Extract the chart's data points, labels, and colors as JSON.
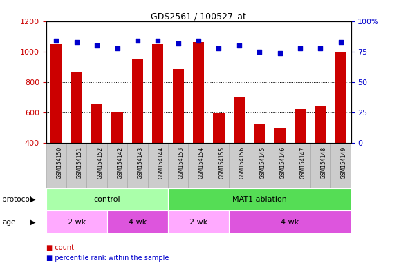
{
  "title": "GDS2561 / 100527_at",
  "samples": [
    "GSM154150",
    "GSM154151",
    "GSM154152",
    "GSM154142",
    "GSM154143",
    "GSM154144",
    "GSM154153",
    "GSM154154",
    "GSM154155",
    "GSM154156",
    "GSM154145",
    "GSM154146",
    "GSM154147",
    "GSM154148",
    "GSM154149"
  ],
  "bar_values": [
    1050,
    865,
    655,
    600,
    955,
    1048,
    885,
    1062,
    595,
    700,
    530,
    500,
    625,
    640,
    1000
  ],
  "dot_values": [
    84,
    83,
    80,
    78,
    84,
    84,
    82,
    84,
    78,
    80,
    75,
    74,
    78,
    78,
    83
  ],
  "bar_color": "#cc0000",
  "dot_color": "#0000cc",
  "ylim_left": [
    400,
    1200
  ],
  "ylim_right": [
    0,
    100
  ],
  "yticks_left": [
    400,
    600,
    800,
    1000,
    1200
  ],
  "yticks_right": [
    0,
    25,
    50,
    75,
    100
  ],
  "grid_lines": [
    600,
    800,
    1000
  ],
  "protocol_groups": [
    {
      "label": "control",
      "start": 0,
      "end": 6,
      "color": "#aaffaa"
    },
    {
      "label": "MAT1 ablation",
      "start": 6,
      "end": 15,
      "color": "#55dd55"
    }
  ],
  "age_groups": [
    {
      "label": "2 wk",
      "start": 0,
      "end": 3,
      "color": "#ffaaff"
    },
    {
      "label": "4 wk",
      "start": 3,
      "end": 6,
      "color": "#dd55dd"
    },
    {
      "label": "2 wk",
      "start": 6,
      "end": 9,
      "color": "#ffaaff"
    },
    {
      "label": "4 wk",
      "start": 9,
      "end": 15,
      "color": "#dd55dd"
    }
  ],
  "legend_items": [
    {
      "label": "count",
      "color": "#cc0000"
    },
    {
      "label": "percentile rank within the sample",
      "color": "#0000cc"
    }
  ],
  "protocol_label": "protocol",
  "age_label": "age",
  "tick_area_color": "#cccccc",
  "tick_border_color": "#aaaaaa"
}
